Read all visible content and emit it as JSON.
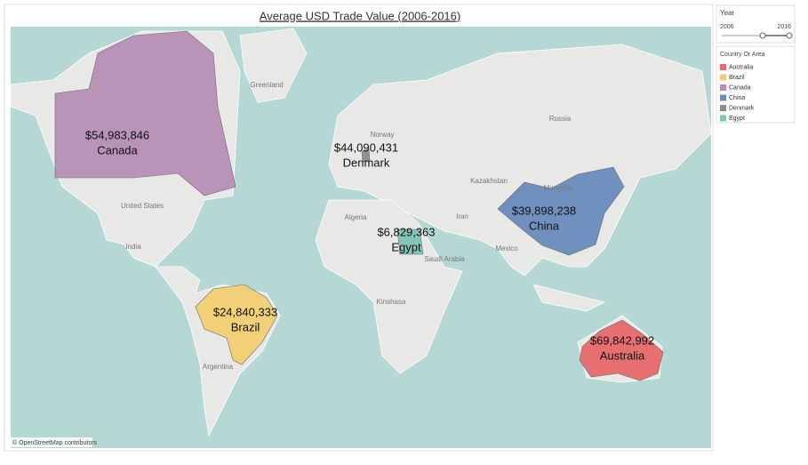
{
  "title": "Average USD Trade Value (2006-2016)",
  "filter": {
    "title": "Year",
    "min": "2006",
    "max": "2016"
  },
  "legend": {
    "title": "Country Or Area",
    "items": [
      {
        "name": "Australia",
        "color": "#e8696b"
      },
      {
        "name": "Brazil",
        "color": "#f2cf72"
      },
      {
        "name": "Canada",
        "color": "#b88fb6"
      },
      {
        "name": "China",
        "color": "#6a8dbf"
      },
      {
        "name": "Denmark",
        "color": "#8c8c8c"
      },
      {
        "name": "Egypt",
        "color": "#7fc4b8"
      }
    ]
  },
  "regions": [
    {
      "name": "Canada",
      "value_label": "$54,983,846"
    },
    {
      "name": "Denmark",
      "value_label": "$44,090,431"
    },
    {
      "name": "Egypt",
      "value_label": "$6,829,363"
    },
    {
      "name": "China",
      "value_label": "$39,898,238"
    },
    {
      "name": "Brazil",
      "value_label": "$24,840,333"
    },
    {
      "name": "Australia",
      "value_label": "$69,842,992"
    }
  ],
  "places": [
    "Russia",
    "United States",
    "India",
    "Mexico",
    "Greenland",
    "Mongolia",
    "Kazakhstan",
    "Argentina",
    "Norway",
    "Saudi Arabia",
    "Iran",
    "Kinshasa",
    "Algeria"
  ],
  "attribution": "© OpenStreetMap contributors"
}
